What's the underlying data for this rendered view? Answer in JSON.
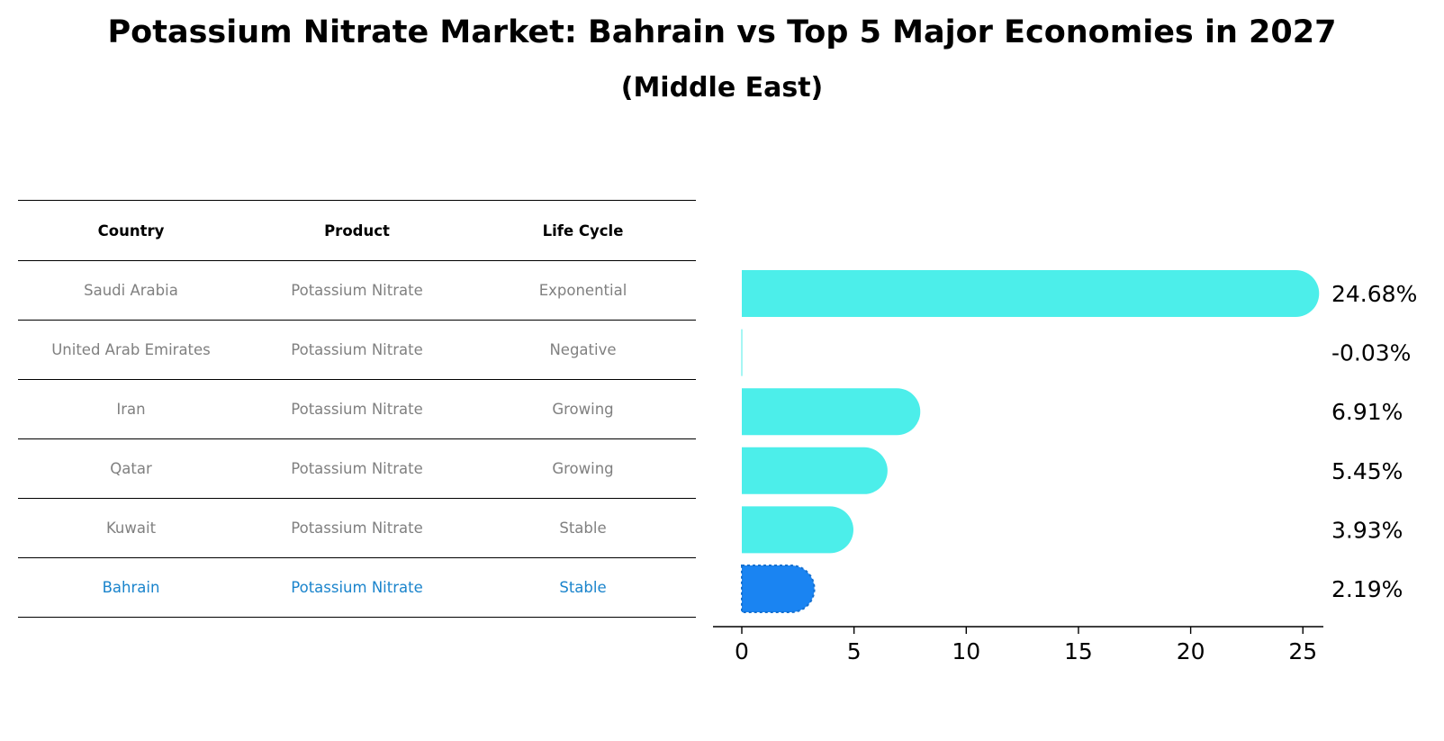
{
  "title": "Potassium Nitrate Market: Bahrain vs Top 5 Major Economies in 2027",
  "subtitle": "(Middle East)",
  "table": {
    "headers": [
      "Country",
      "Product",
      "Life Cycle"
    ],
    "rows": [
      [
        "Saudi Arabia",
        "Potassium Nitrate",
        "Exponential"
      ],
      [
        "United Arab Emirates",
        "Potassium Nitrate",
        "Negative"
      ],
      [
        "Iran",
        "Potassium Nitrate",
        "Growing"
      ],
      [
        "Qatar",
        "Potassium Nitrate",
        "Growing"
      ],
      [
        "Kuwait",
        "Potassium Nitrate",
        "Stable"
      ],
      [
        "Bahrain",
        "Potassium Nitrate",
        "Stable"
      ]
    ],
    "highlight_row": 5
  },
  "chart_data": {
    "type": "bar",
    "orientation": "horizontal",
    "categories": [
      "Saudi Arabia",
      "United Arab Emirates",
      "Iran",
      "Qatar",
      "Kuwait",
      "Bahrain"
    ],
    "values": [
      24.68,
      -0.03,
      6.91,
      5.45,
      3.93,
      2.19
    ],
    "value_labels": [
      "24.68%",
      "-0.03%",
      "6.91%",
      "5.45%",
      "3.93%",
      "2.19%"
    ],
    "xlim": [
      -1.3,
      25.9
    ],
    "xticks": [
      0,
      5,
      10,
      15,
      20,
      25
    ],
    "grid": false,
    "colors": {
      "default": "#4ceeea",
      "highlight": "#1a84f2"
    },
    "highlight_index": 5
  }
}
